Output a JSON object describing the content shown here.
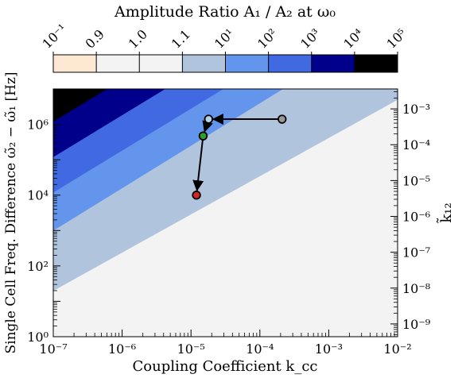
{
  "chart_data": {
    "type": "heatmap",
    "colorbar": {
      "title": "Amplitude Ratio A₁ / A₂ at ω₀",
      "tick_labels": [
        "10⁻¹",
        "0.9",
        "1.0",
        "1.1",
        "10¹",
        "10²",
        "10³",
        "10⁴",
        "10⁵"
      ],
      "colors": [
        "#fde9d3",
        "#f3f3f3",
        "#f3f3f3",
        "#b0c4de",
        "#6495ed",
        "#4169e1",
        "#00008b",
        "#000000"
      ]
    },
    "xlabel": "Coupling Coefficient k_cc",
    "ylabel": "Single Cell Freq. Difference ω̃₂ − ω̃₁ [Hz]",
    "ylabel_right": "k̃₁₂",
    "xscale": "log",
    "yscale": "log",
    "xlim": [
      1e-07,
      0.01
    ],
    "ylim": [
      1,
      10000000.0
    ],
    "y2lim": [
      4.4e-10,
      0.0036
    ],
    "x_ticks": [
      "10⁻⁷",
      "10⁻⁶",
      "10⁻⁵",
      "10⁻⁴",
      "10⁻³",
      "10⁻²"
    ],
    "y_ticks": [
      "10⁰",
      "10²",
      "10⁴",
      "10⁶"
    ],
    "y2_ticks": [
      "10⁻⁹",
      "10⁻⁸",
      "10⁻⁷",
      "10⁻⁶",
      "10⁻⁵",
      "10⁻⁴",
      "10⁻³"
    ],
    "regions": [
      {
        "name": "ratio 1.1 to 10¹",
        "color": "#b0c4de",
        "y_at_xmin": 20,
        "y_at_xmax": 5000000
      },
      {
        "name": "ratio 10¹ to 10²",
        "color": "#6495ed",
        "y_at_xmin": 1000,
        "y_at_xmax": 1000000000.0
      },
      {
        "name": "ratio 10² to 10³",
        "color": "#4169e1",
        "y_at_xmin": 12000,
        "y_at_xmax": 10000000000.0
      },
      {
        "name": "ratio 10³ to 10⁴",
        "color": "#00008b",
        "y_at_xmin": 120000,
        "y_at_xmax": 100000000000.0
      },
      {
        "name": "ratio 10⁴ to 10⁵",
        "color": "#000000",
        "y_at_xmin": 1200000,
        "y_at_xmax": 1000000000000.0
      }
    ],
    "trajectory": [
      {
        "x": 0.00021,
        "y": 1400000,
        "color": "#999999"
      },
      {
        "x": 1.8e-05,
        "y": 1400000,
        "color": "#bcd0e6"
      },
      {
        "x": 1.5e-05,
        "y": 470000,
        "color": "#2ca02c"
      },
      {
        "x": 1.2e-05,
        "y": 10000,
        "color": "#d62728"
      }
    ]
  }
}
